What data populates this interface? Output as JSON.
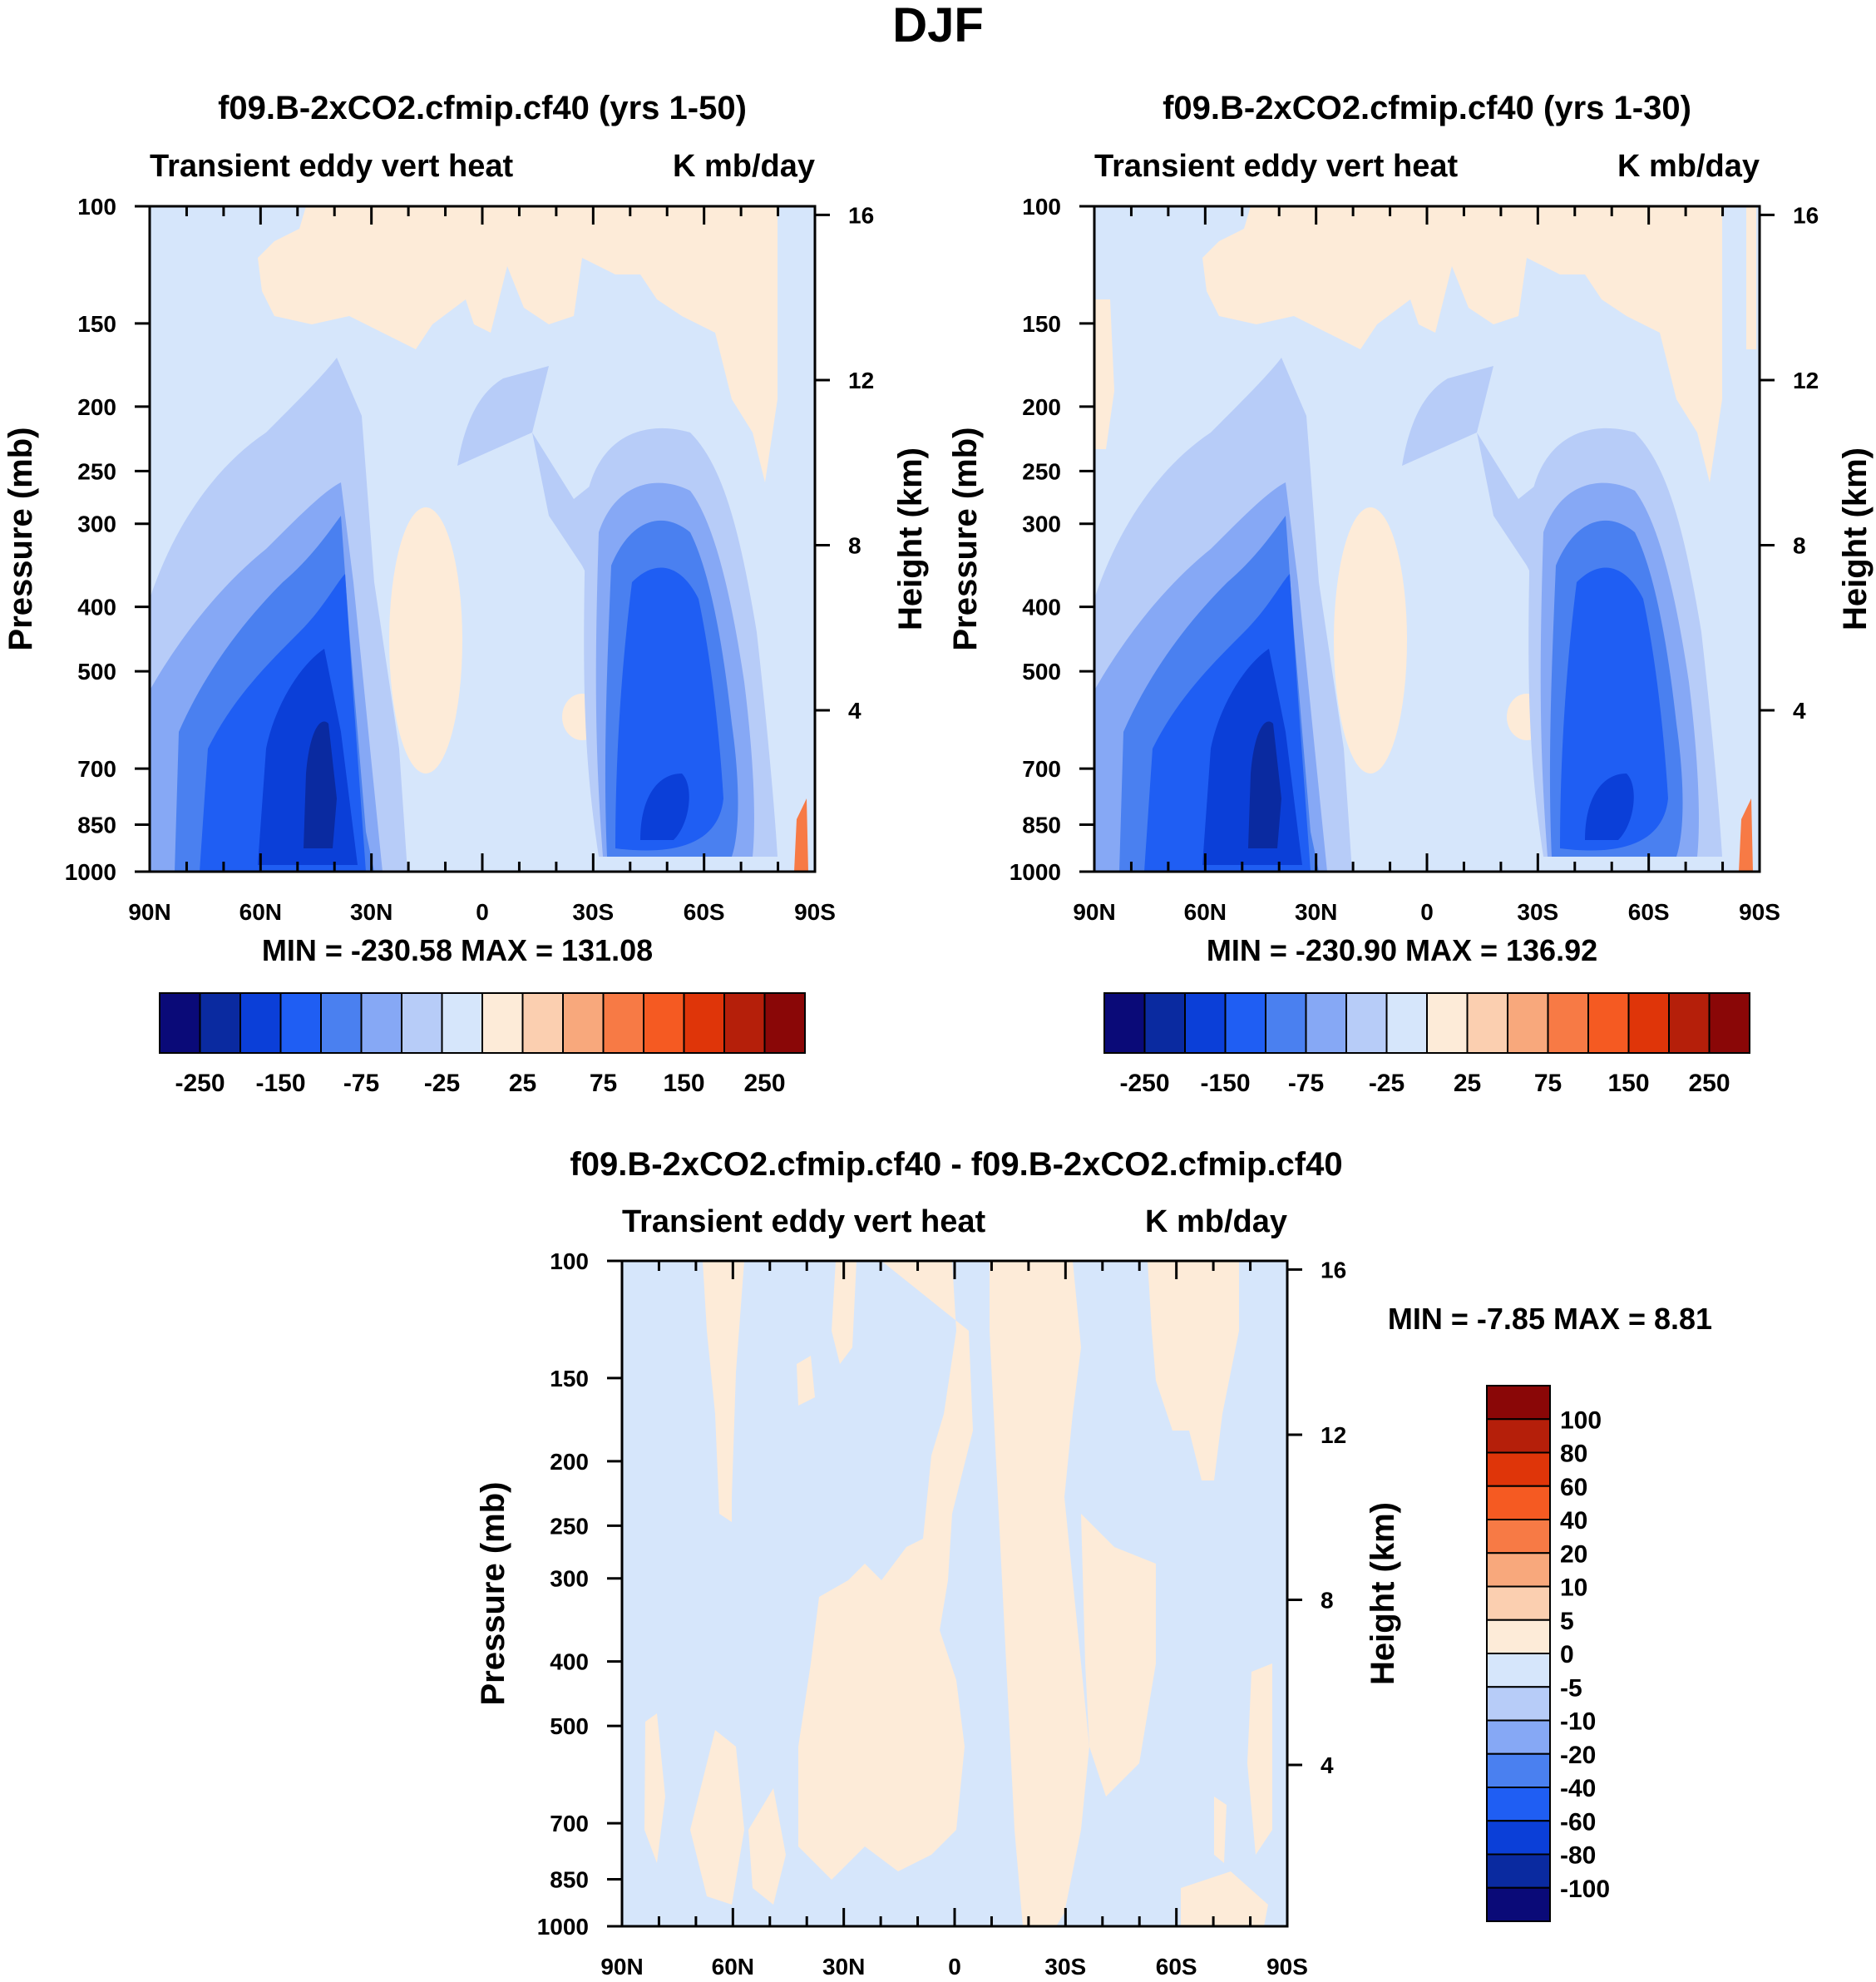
{
  "figure_title": "DJF",
  "chart_data": [
    {
      "type": "contour",
      "title": "f09.B-2xCO2.cfmip.cf40 (yrs 1-50)",
      "left_string": "Transient eddy vert heat",
      "right_string": "K mb/day",
      "ylabel": "Pressure (mb)",
      "ylabel_right": "Height (km)",
      "x_ticks": [
        "90N",
        "60N",
        "30N",
        "0",
        "30S",
        "60S",
        "90S"
      ],
      "y_ticks": [
        "100",
        "150",
        "200",
        "250",
        "300",
        "400",
        "500",
        "700",
        "850",
        "1000"
      ],
      "y_ticks_right": [
        "16",
        "12",
        "8",
        "4"
      ],
      "stats": "MIN = -230.58  MAX = 131.08",
      "min": -230.58,
      "max": 131.08,
      "colorbar_labels": [
        "-250",
        "-150",
        "-75",
        "-25",
        "25",
        "75",
        "150",
        "250"
      ],
      "colorbar_levels": [
        -250,
        -200,
        -150,
        -100,
        -75,
        -50,
        -25,
        0,
        25,
        50,
        75,
        100,
        150,
        200,
        250
      ]
    },
    {
      "type": "contour",
      "title": "f09.B-2xCO2.cfmip.cf40 (yrs 1-30)",
      "left_string": "Transient eddy vert heat",
      "right_string": "K mb/day",
      "ylabel": "Pressure (mb)",
      "ylabel_right": "Height (km)",
      "x_ticks": [
        "90N",
        "60N",
        "30N",
        "0",
        "30S",
        "60S",
        "90S"
      ],
      "y_ticks": [
        "100",
        "150",
        "200",
        "250",
        "300",
        "400",
        "500",
        "700",
        "850",
        "1000"
      ],
      "y_ticks_right": [
        "16",
        "12",
        "8",
        "4"
      ],
      "stats": "MIN = -230.90  MAX = 136.92",
      "min": -230.9,
      "max": 136.92,
      "colorbar_labels": [
        "-250",
        "-150",
        "-75",
        "-25",
        "25",
        "75",
        "150",
        "250"
      ],
      "colorbar_levels": [
        -250,
        -200,
        -150,
        -100,
        -75,
        -50,
        -25,
        0,
        25,
        50,
        75,
        100,
        150,
        200,
        250
      ]
    },
    {
      "type": "contour",
      "title": "f09.B-2xCO2.cfmip.cf40 - f09.B-2xCO2.cfmip.cf40",
      "left_string": "Transient eddy vert heat",
      "right_string": "K mb/day",
      "ylabel": "Pressure (mb)",
      "ylabel_right": "Height (km)",
      "x_ticks": [
        "90N",
        "60N",
        "30N",
        "0",
        "30S",
        "60S",
        "90S"
      ],
      "y_ticks": [
        "100",
        "150",
        "200",
        "250",
        "300",
        "400",
        "500",
        "700",
        "850",
        "1000"
      ],
      "y_ticks_right": [
        "16",
        "12",
        "8",
        "4"
      ],
      "stats": "MIN =  -7.85  MAX =   8.81",
      "min": -7.85,
      "max": 8.81,
      "colorbar_labels": [
        "100",
        "80",
        "60",
        "40",
        "20",
        "10",
        "5",
        "0",
        "-5",
        "-10",
        "-20",
        "-40",
        "-60",
        "-80",
        "-100"
      ]
    }
  ],
  "colors": {
    "palette": [
      "#0a0a78",
      "#0a2aa0",
      "#0b3fd8",
      "#1f5ef3",
      "#4a80f0",
      "#86a8f5",
      "#b7ccf8",
      "#d6e6fb",
      "#fdebd8",
      "#fbcfb0",
      "#f8a87c",
      "#f77a45",
      "#f55a22",
      "#df3509",
      "#b51f0a",
      "#8a0707"
    ],
    "light_blue": "#d6e6fb",
    "light_orange": "#fdebd8"
  }
}
